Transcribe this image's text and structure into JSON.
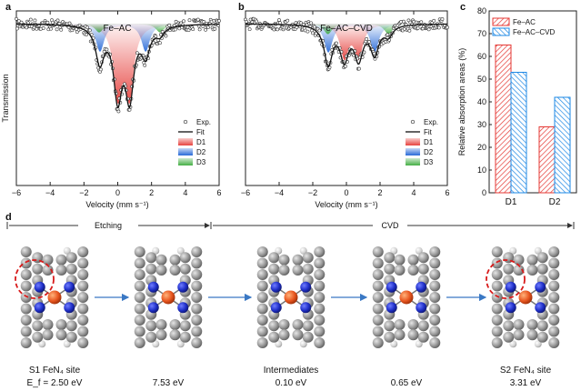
{
  "panel_letters": [
    "a",
    "b",
    "c",
    "d"
  ],
  "chart_data": [
    {
      "type": "line",
      "panel": "a",
      "title": "Fe–AC",
      "xlabel": "Velocity (mm s⁻¹)",
      "ylabel": "Transmission",
      "xlim": [
        -6,
        6
      ],
      "xticks": [
        -6,
        -4,
        -2,
        0,
        2,
        4,
        6
      ],
      "legend": [
        "Exp.",
        "Fit",
        "D1",
        "D2",
        "D3"
      ],
      "components": [
        {
          "name": "D1",
          "center": 0.35,
          "depth": 0.8,
          "quad_split": 0.7,
          "color": "#e53935"
        },
        {
          "name": "D2",
          "center": 0.3,
          "depth": 0.32,
          "quad_split": 2.7,
          "color": "#1e63d6"
        },
        {
          "name": "D3",
          "center": 0.7,
          "depth": 0.1,
          "quad_split": 3.6,
          "color": "#3caa3c"
        }
      ]
    },
    {
      "type": "line",
      "panel": "b",
      "title": "Fe–AC–CVD",
      "xlabel": "Velocity (mm s⁻¹)",
      "ylabel": "",
      "xlim": [
        -6,
        6
      ],
      "xticks": [
        -6,
        -4,
        -2,
        0,
        2,
        4,
        6
      ],
      "legend": [
        "Exp.",
        "Fit",
        "D1",
        "D2",
        "D3"
      ],
      "components": [
        {
          "name": "D1",
          "center": 0.3,
          "depth": 0.38,
          "quad_split": 0.85,
          "color": "#e53935"
        },
        {
          "name": "D2",
          "center": 0.3,
          "depth": 0.33,
          "quad_split": 2.75,
          "color": "#1e63d6"
        },
        {
          "name": "D3",
          "center": 0.7,
          "depth": 0.12,
          "quad_split": 3.6,
          "color": "#3caa3c"
        }
      ]
    },
    {
      "type": "bar",
      "panel": "c",
      "title": "",
      "xlabel": "",
      "ylabel": "Relative absorption areas (%)",
      "ylim": [
        0,
        80
      ],
      "yticks": [
        0,
        10,
        20,
        30,
        40,
        50,
        60,
        70,
        80
      ],
      "categories": [
        "D1",
        "D2"
      ],
      "series": [
        {
          "name": "Fe–AC",
          "values": [
            65,
            29
          ],
          "color": "#e53935"
        },
        {
          "name": "Fe–AC–CVD",
          "values": [
            53,
            42
          ],
          "color": "#1e88e5"
        }
      ]
    }
  ],
  "diagram": {
    "stages": [
      {
        "label": "Etching"
      },
      {
        "label": "CVD"
      }
    ],
    "steps": [
      {
        "label": "S1 FeN₄ site",
        "energy": "E_f = 2.50 eV"
      },
      {
        "label": "",
        "energy": "7.53 eV"
      },
      {
        "label": "Intermediates",
        "energy": "0.10 eV"
      },
      {
        "label": "",
        "energy": "0.65 eV"
      },
      {
        "label": "S2 FeN₄ site",
        "energy": "3.31 eV"
      }
    ],
    "colors": {
      "carbon": "#8a8a8a",
      "nitrogen": "#1f2fc8",
      "iron": "#e8561f",
      "arrow": "#3a78c4",
      "highlight": "#d81b1b"
    }
  }
}
